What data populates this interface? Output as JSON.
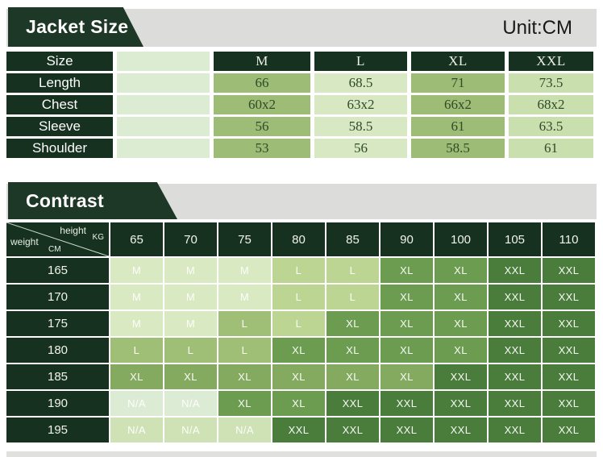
{
  "palette": {
    "page_bg": "#ffffff",
    "gray_band": "#dcdcda",
    "banner_bg": "#1d3826",
    "dark_cell": "#16311f",
    "bottom_strip": "#e0e0de",
    "value_text": "#2e4a28",
    "size_empty_col": "#dcecd2",
    "size_col_m": "#9dbd77",
    "size_col_l": "#d7e8c3",
    "size_col_xl": "#9dbd77",
    "size_col_xxl": "#c9dfae",
    "m": "#d9e9c2",
    "l1": "#bdd593",
    "l2": "#a0bf76",
    "xl": "#6b9c50",
    "xl2": "#83aa5f",
    "xxl": "#4a7d3b",
    "na1": "#dcebd3",
    "na2": "#cfe2b6"
  },
  "size_section": {
    "banner": "Jacket Size",
    "unit": "Unit:CM",
    "corner": "Size",
    "columns": [
      "M",
      "L",
      "XL",
      "XXL"
    ],
    "rows": [
      {
        "label": "Length",
        "values": [
          "66",
          "68.5",
          "71",
          "73.5"
        ]
      },
      {
        "label": "Chest",
        "values": [
          "60x2",
          "63x2",
          "66x2",
          "68x2"
        ]
      },
      {
        "label": "Sleeve",
        "values": [
          "56",
          "58.5",
          "61",
          "63.5"
        ]
      },
      {
        "label": "Shoulder",
        "values": [
          "53",
          "56",
          "58.5",
          "61"
        ]
      }
    ]
  },
  "contrast_section": {
    "banner": "Contrast",
    "corner": {
      "top_label": "height",
      "top_unit": "KG",
      "bottom_label": "weight",
      "bottom_unit": "CM"
    },
    "weight_columns": [
      "65",
      "70",
      "75",
      "80",
      "85",
      "90",
      "100",
      "105",
      "110"
    ],
    "rows": [
      {
        "height": "165",
        "cells": [
          {
            "v": "M",
            "t": "m"
          },
          {
            "v": "M",
            "t": "m"
          },
          {
            "v": "M",
            "t": "m"
          },
          {
            "v": "L",
            "t": "l1"
          },
          {
            "v": "L",
            "t": "l1"
          },
          {
            "v": "XL",
            "t": "xl"
          },
          {
            "v": "XL",
            "t": "xl"
          },
          {
            "v": "XXL",
            "t": "xxl"
          },
          {
            "v": "XXL",
            "t": "xxl"
          }
        ]
      },
      {
        "height": "170",
        "cells": [
          {
            "v": "M",
            "t": "m"
          },
          {
            "v": "M",
            "t": "m"
          },
          {
            "v": "M",
            "t": "m"
          },
          {
            "v": "L",
            "t": "l1"
          },
          {
            "v": "L",
            "t": "l1"
          },
          {
            "v": "XL",
            "t": "xl"
          },
          {
            "v": "XL",
            "t": "xl"
          },
          {
            "v": "XXL",
            "t": "xxl"
          },
          {
            "v": "XXL",
            "t": "xxl"
          }
        ]
      },
      {
        "height": "175",
        "cells": [
          {
            "v": "M",
            "t": "m"
          },
          {
            "v": "M",
            "t": "m"
          },
          {
            "v": "L",
            "t": "l2"
          },
          {
            "v": "L",
            "t": "l1"
          },
          {
            "v": "XL",
            "t": "xl"
          },
          {
            "v": "XL",
            "t": "xl"
          },
          {
            "v": "XL",
            "t": "xl"
          },
          {
            "v": "XXL",
            "t": "xxl"
          },
          {
            "v": "XXL",
            "t": "xxl"
          }
        ]
      },
      {
        "height": "180",
        "cells": [
          {
            "v": "L",
            "t": "l2"
          },
          {
            "v": "L",
            "t": "l2"
          },
          {
            "v": "L",
            "t": "l2"
          },
          {
            "v": "XL",
            "t": "xl"
          },
          {
            "v": "XL",
            "t": "xl"
          },
          {
            "v": "XL",
            "t": "xl"
          },
          {
            "v": "XL",
            "t": "xl"
          },
          {
            "v": "XXL",
            "t": "xxl"
          },
          {
            "v": "XXL",
            "t": "xxl"
          }
        ]
      },
      {
        "height": "185",
        "cells": [
          {
            "v": "XL",
            "t": "xl2"
          },
          {
            "v": "XL",
            "t": "xl2"
          },
          {
            "v": "XL",
            "t": "xl2"
          },
          {
            "v": "XL",
            "t": "xl2"
          },
          {
            "v": "XL",
            "t": "xl2"
          },
          {
            "v": "XL",
            "t": "xl2"
          },
          {
            "v": "XXL",
            "t": "xxl"
          },
          {
            "v": "XXL",
            "t": "xxl"
          },
          {
            "v": "XXL",
            "t": "xxl"
          }
        ]
      },
      {
        "height": "190",
        "cells": [
          {
            "v": "N/A",
            "t": "na1"
          },
          {
            "v": "N/A",
            "t": "na1"
          },
          {
            "v": "XL",
            "t": "xl"
          },
          {
            "v": "XL",
            "t": "xl"
          },
          {
            "v": "XXL",
            "t": "xxl"
          },
          {
            "v": "XXL",
            "t": "xxl"
          },
          {
            "v": "XXL",
            "t": "xxl"
          },
          {
            "v": "XXL",
            "t": "xxl"
          },
          {
            "v": "XXL",
            "t": "xxl"
          }
        ]
      },
      {
        "height": "195",
        "cells": [
          {
            "v": "N/A",
            "t": "na2"
          },
          {
            "v": "N/A",
            "t": "na2"
          },
          {
            "v": "N/A",
            "t": "na2"
          },
          {
            "v": "XXL",
            "t": "xxl"
          },
          {
            "v": "XXL",
            "t": "xxl"
          },
          {
            "v": "XXL",
            "t": "xxl"
          },
          {
            "v": "XXL",
            "t": "xxl"
          },
          {
            "v": "XXL",
            "t": "xxl"
          },
          {
            "v": "XXL",
            "t": "xxl"
          }
        ]
      }
    ]
  }
}
